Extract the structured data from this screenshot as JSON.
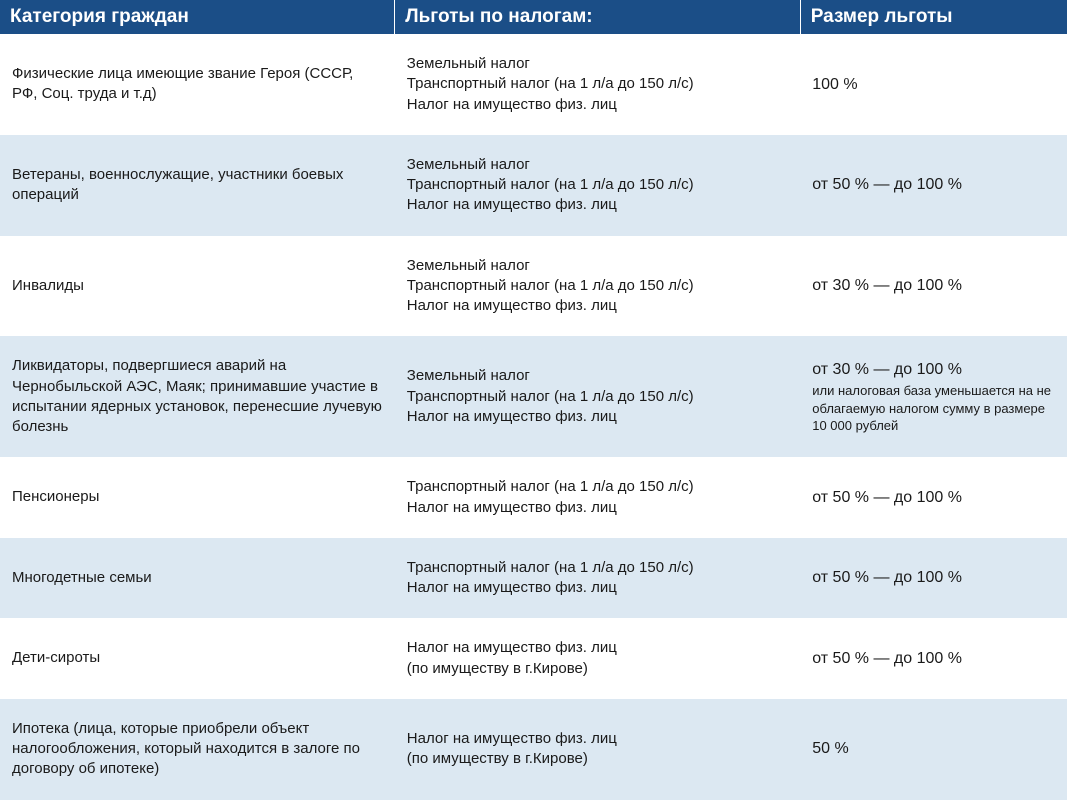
{
  "table": {
    "headers": {
      "category": "Категория граждан",
      "taxes": "Льготы по налогам:",
      "amount": "Размер льготы"
    },
    "rows": [
      {
        "category": "Физические лица имеющие звание Героя (СССР, РФ,  Соц. труда и т.д)",
        "taxes": [
          "Земельный налог",
          "Транспортный налог (на 1 л/а до 150 л/с)",
          "Налог на имущество физ. лиц"
        ],
        "amount": "100 %",
        "amount_note": ""
      },
      {
        "category": "Ветераны, военнослужащие, участники боевых операций",
        "taxes": [
          "Земельный налог",
          "Транспортный налог (на 1 л/а до 150 л/с)",
          "Налог на имущество физ. лиц"
        ],
        "amount": "от 50 % — до 100 %",
        "amount_note": ""
      },
      {
        "category": "Инвалиды",
        "taxes": [
          "Земельный налог",
          "Транспортный налог (на 1 л/а до 150 л/с)",
          "Налог на имущество физ. лиц"
        ],
        "amount": "от 30 % — до 100 %",
        "amount_note": ""
      },
      {
        "category": "Ликвидаторы, подвергшиеся аварий на Чернобыльской АЭС, Маяк; принимавшие участие в испытании ядерных установок, перенесшие лучевую болезнь",
        "taxes": [
          "Земельный налог",
          "Транспортный налог (на 1 л/а до 150 л/с)",
          "Налог на имущество физ. лиц"
        ],
        "amount": "от 30 % — до 100 %",
        "amount_note": "или налоговая база уменьшается на не облагаемую налогом сумму в размере 10 000 рублей"
      },
      {
        "category": "Пенсионеры",
        "taxes": [
          "Транспортный налог (на 1 л/а до 150 л/с)",
          "Налог на имущество физ. лиц"
        ],
        "amount": "от 50 % — до 100 %",
        "amount_note": ""
      },
      {
        "category": "Многодетные семьи",
        "taxes": [
          "Транспортный налог (на 1 л/а до 150 л/с)",
          "Налог на имущество физ. лиц"
        ],
        "amount": "от 50 % — до 100 %",
        "amount_note": ""
      },
      {
        "category": "Дети-сироты",
        "taxes": [
          "Налог на имущество физ. лиц",
          "(по имуществу в г.Кирове)"
        ],
        "amount": "от 50 % — до 100 %",
        "amount_note": ""
      },
      {
        "category": "Ипотека (лица, которые приобрели объект налогообложения, который находится в залоге по договору об ипотеке)",
        "taxes": [
          "Налог на имущество физ. лиц",
          "(по имуществу в г.Кирове)"
        ],
        "amount": "50 %",
        "amount_note": ""
      }
    ],
    "colors": {
      "header_bg": "#1b4e87",
      "header_text": "#ffffff",
      "row_odd_bg": "#ffffff",
      "row_even_bg": "#dce8f2",
      "body_text": "#1a1a1a"
    },
    "column_widths": {
      "category": "37%",
      "taxes": "38%",
      "amount": "25%"
    },
    "header_fontsize": 19,
    "body_fontsize": 15,
    "note_fontsize": 13
  }
}
